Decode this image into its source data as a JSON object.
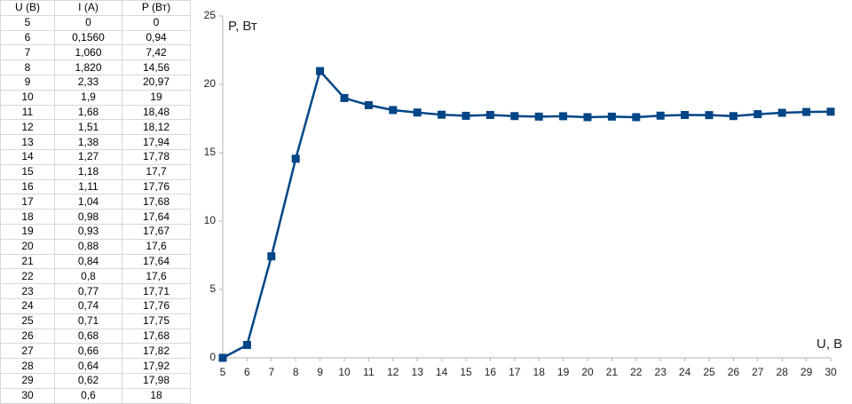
{
  "table": {
    "header": [
      "U (В)",
      "I (A)",
      "P (Вт)"
    ],
    "rows": [
      [
        "5",
        "0",
        "0"
      ],
      [
        "6",
        "0,1560",
        "0,94"
      ],
      [
        "7",
        "1,060",
        "7,42"
      ],
      [
        "8",
        "1,820",
        "14,56"
      ],
      [
        "9",
        "2,33",
        "20,97"
      ],
      [
        "10",
        "1,9",
        "19"
      ],
      [
        "11",
        "1,68",
        "18,48"
      ],
      [
        "12",
        "1,51",
        "18,12"
      ],
      [
        "13",
        "1,38",
        "17,94"
      ],
      [
        "14",
        "1,27",
        "17,78"
      ],
      [
        "15",
        "1,18",
        "17,7"
      ],
      [
        "16",
        "1,11",
        "17,76"
      ],
      [
        "17",
        "1,04",
        "17,68"
      ],
      [
        "18",
        "0,98",
        "17,64"
      ],
      [
        "19",
        "0,93",
        "17,67"
      ],
      [
        "20",
        "0,88",
        "17,6"
      ],
      [
        "21",
        "0,84",
        "17,64"
      ],
      [
        "22",
        "0,8",
        "17,6"
      ],
      [
        "23",
        "0,77",
        "17,71"
      ],
      [
        "24",
        "0,74",
        "17,76"
      ],
      [
        "25",
        "0,71",
        "17,75"
      ],
      [
        "26",
        "0,68",
        "17,68"
      ],
      [
        "27",
        "0,66",
        "17,82"
      ],
      [
        "28",
        "0,64",
        "17,92"
      ],
      [
        "29",
        "0,62",
        "17,98"
      ],
      [
        "30",
        "0,6",
        "18"
      ]
    ]
  },
  "chart_data": {
    "type": "line",
    "y_label": "P, Вт",
    "x_label": "U, В",
    "x": [
      5,
      6,
      7,
      8,
      9,
      10,
      11,
      12,
      13,
      14,
      15,
      16,
      17,
      18,
      19,
      20,
      21,
      22,
      23,
      24,
      25,
      26,
      27,
      28,
      29,
      30
    ],
    "series": [
      {
        "color": "#004586",
        "values": [
          0,
          0.94,
          7.42,
          14.56,
          20.97,
          19,
          18.48,
          18.12,
          17.94,
          17.78,
          17.7,
          17.76,
          17.68,
          17.64,
          17.67,
          17.6,
          17.64,
          17.6,
          17.71,
          17.76,
          17.75,
          17.68,
          17.82,
          17.92,
          17.98,
          18
        ]
      }
    ],
    "xlim": [
      5,
      30
    ],
    "xticks": [
      5,
      6,
      7,
      8,
      9,
      10,
      11,
      12,
      13,
      14,
      15,
      16,
      17,
      18,
      19,
      20,
      21,
      22,
      23,
      24,
      25,
      26,
      27,
      28,
      29,
      30
    ],
    "ylim": [
      0,
      25
    ],
    "yticks": [
      0,
      5,
      10,
      15,
      20,
      25
    ],
    "grid": false
  }
}
